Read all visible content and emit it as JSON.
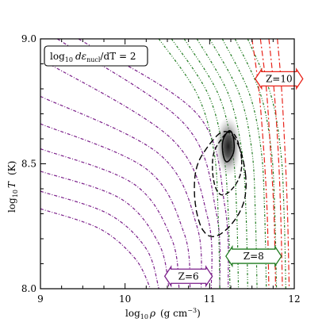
{
  "chart_data": {
    "type": "line",
    "xlabel_main": "log",
    "xlabel_sub": "10",
    "xlabel_rho": "ρ",
    "xlabel_units": "(g cm",
    "xlabel_exp": "−3",
    "xlabel_close": ")",
    "ylabel_main": "log",
    "ylabel_sub": "10",
    "ylabel_T": "T",
    "ylabel_units": "(K)",
    "xlim": [
      9,
      12
    ],
    "ylim": [
      8.0,
      9.0
    ],
    "xticks": [
      "9",
      "10",
      "11",
      "12"
    ],
    "yticks": [
      "8.0",
      "8.5",
      "9.0"
    ],
    "x_minor_step": 0.25,
    "y_minor_step": 0.1,
    "annotation": {
      "prefix": "log",
      "sub": "10",
      "expr": "dε",
      "expr_sub": "nucl",
      "tail": "/dT = 2"
    },
    "series": [
      {
        "name": "Z=6",
        "color": "#7b1f8a",
        "pos": "bottom-center",
        "anchor": [
          10.75,
          8.05
        ],
        "contours": [
          [
            [
              9.0,
              8.32
            ],
            [
              9.7,
              8.24
            ],
            [
              10.12,
              8.12
            ],
            [
              10.3,
              8.0
            ]
          ],
          [
            [
              9.0,
              8.39
            ],
            [
              9.8,
              8.3
            ],
            [
              10.25,
              8.16
            ],
            [
              10.4,
              8.0
            ]
          ],
          [
            [
              9.0,
              8.47
            ],
            [
              9.95,
              8.36
            ],
            [
              10.4,
              8.18
            ],
            [
              10.52,
              8.0
            ]
          ],
          [
            [
              9.0,
              8.56
            ],
            [
              10.1,
              8.42
            ],
            [
              10.55,
              8.2
            ],
            [
              10.64,
              8.0
            ]
          ],
          [
            [
              9.0,
              8.66
            ],
            [
              10.25,
              8.48
            ],
            [
              10.7,
              8.22
            ],
            [
              10.77,
              8.0
            ]
          ],
          [
            [
              9.0,
              8.77
            ],
            [
              10.4,
              8.54
            ],
            [
              10.85,
              8.25
            ],
            [
              10.9,
              8.0
            ]
          ],
          [
            [
              9.05,
              8.91
            ],
            [
              10.55,
              8.6
            ],
            [
              10.98,
              8.28
            ],
            [
              11.02,
              8.0
            ]
          ],
          [
            [
              9.2,
              9.0
            ],
            [
              10.7,
              8.66
            ],
            [
              11.08,
              8.3
            ],
            [
              11.12,
              8.0
            ]
          ],
          [
            [
              9.45,
              9.0
            ],
            [
              10.85,
              8.7
            ],
            [
              11.18,
              8.33
            ],
            [
              11.22,
              8.0
            ]
          ]
        ]
      },
      {
        "name": "Z=8",
        "color": "#1e7a1e",
        "pos": "bottom-right",
        "anchor": [
          11.52,
          8.13
        ],
        "contours": [
          [
            [
              10.4,
              9.0
            ],
            [
              10.85,
              8.78
            ],
            [
              11.05,
              8.55
            ],
            [
              11.1,
              8.3
            ],
            [
              11.12,
              8.0
            ]
          ],
          [
            [
              10.55,
              9.0
            ],
            [
              10.98,
              8.78
            ],
            [
              11.16,
              8.55
            ],
            [
              11.22,
              8.3
            ],
            [
              11.24,
              8.0
            ]
          ],
          [
            [
              10.7,
              9.0
            ],
            [
              11.1,
              8.78
            ],
            [
              11.27,
              8.55
            ],
            [
              11.32,
              8.3
            ],
            [
              11.34,
              8.0
            ]
          ],
          [
            [
              10.85,
              9.0
            ],
            [
              11.22,
              8.78
            ],
            [
              11.38,
              8.55
            ],
            [
              11.43,
              8.3
            ],
            [
              11.45,
              8.0
            ]
          ],
          [
            [
              11.0,
              9.0
            ],
            [
              11.35,
              8.78
            ],
            [
              11.5,
              8.55
            ],
            [
              11.54,
              8.3
            ],
            [
              11.56,
              8.0
            ]
          ],
          [
            [
              11.15,
              9.0
            ],
            [
              11.47,
              8.78
            ],
            [
              11.61,
              8.55
            ],
            [
              11.65,
              8.3
            ],
            [
              11.67,
              8.0
            ]
          ],
          [
            [
              11.3,
              9.0
            ],
            [
              11.6,
              8.78
            ],
            [
              11.73,
              8.55
            ],
            [
              11.77,
              8.3
            ],
            [
              11.79,
              8.0
            ]
          ],
          [
            [
              11.45,
              9.0
            ],
            [
              11.72,
              8.78
            ],
            [
              11.84,
              8.55
            ],
            [
              11.88,
              8.3
            ],
            [
              11.9,
              8.0
            ]
          ]
        ]
      },
      {
        "name": "Z=10",
        "color": "#e8231a",
        "pos": "top-right",
        "anchor": [
          11.82,
          8.84
        ],
        "contours": [
          [
            [
              11.5,
              9.0
            ],
            [
              11.58,
              8.8
            ],
            [
              11.64,
              8.55
            ],
            [
              11.68,
              8.3
            ],
            [
              11.7,
              8.0
            ]
          ],
          [
            [
              11.6,
              9.0
            ],
            [
              11.67,
              8.8
            ],
            [
              11.72,
              8.55
            ],
            [
              11.76,
              8.3
            ],
            [
              11.78,
              8.0
            ]
          ],
          [
            [
              11.7,
              9.0
            ],
            [
              11.76,
              8.8
            ],
            [
              11.81,
              8.55
            ],
            [
              11.84,
              8.3
            ],
            [
              11.86,
              8.0
            ]
          ],
          [
            [
              11.8,
              9.0
            ],
            [
              11.85,
              8.8
            ],
            [
              11.89,
              8.55
            ],
            [
              11.92,
              8.3
            ],
            [
              11.94,
              8.0
            ]
          ]
        ]
      }
    ],
    "density_contours": [
      {
        "level": "inner",
        "center": [
          11.22,
          8.57
        ],
        "rx": 0.07,
        "ry": 0.06
      },
      {
        "level": "middle",
        "center": [
          11.18,
          8.52
        ],
        "rx": 0.17,
        "ry": 0.12
      },
      {
        "level": "outer",
        "center": [
          11.08,
          8.45
        ],
        "rx": 0.3,
        "ry": 0.2
      }
    ]
  }
}
